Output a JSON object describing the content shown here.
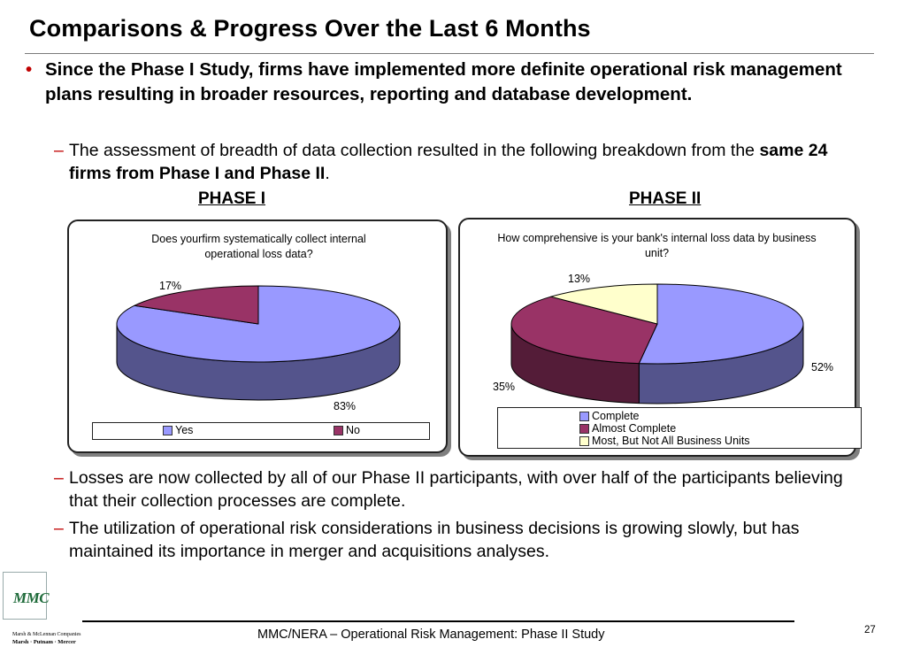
{
  "slide": {
    "title": "Comparisons & Progress Over the Last 6 Months",
    "bullet_main": "Since the Phase I Study, firms have implemented more definite operational risk management plans resulting in broader resources, reporting and database development.",
    "bullet_symbol": "•",
    "dash_symbol": "–",
    "sub1_normal": "The assessment of breadth of data collection resulted in the following breakdown from the ",
    "sub1_bold": "same 24 firms from Phase I and Phase II",
    "sub1_end": ".",
    "sub2": "Losses are now collected by all of our Phase II participants, with over half of the participants believing that their collection processes are complete.",
    "sub3": "The utilization of operational risk considerations in business decisions is growing slowly, but has maintained its importance in merger and acquisitions analyses.",
    "phase1_heading": "PHASE I",
    "phase2_heading": "PHASE II"
  },
  "chart_data": [
    {
      "type": "pie",
      "title": "Does yourfirm systematically collect internal operational loss data?",
      "categories": [
        "Yes",
        "No"
      ],
      "values": [
        83,
        17
      ],
      "value_labels": [
        "83%",
        "17%"
      ],
      "colors": [
        "#9999ff",
        "#993366"
      ],
      "legend": "bottom"
    },
    {
      "type": "pie",
      "title": "How comprehensive is your bank's internal loss data by business unit?",
      "categories": [
        "Complete",
        "Almost Complete",
        "Most, But Not All Business Units"
      ],
      "values": [
        52,
        35,
        13
      ],
      "value_labels": [
        "52%",
        "35%",
        "13%"
      ],
      "colors": [
        "#9999ff",
        "#993366",
        "#ffffcc"
      ],
      "legend": "bottom"
    }
  ],
  "footer": {
    "text": "MMC/NERA – Operational Risk Management: Phase II Study",
    "page_number": "27",
    "logo_text": "MMC",
    "logo_line1": "Marsh & McLennan Companies",
    "logo_line2": "Marsh · Putnam · Mercer"
  }
}
